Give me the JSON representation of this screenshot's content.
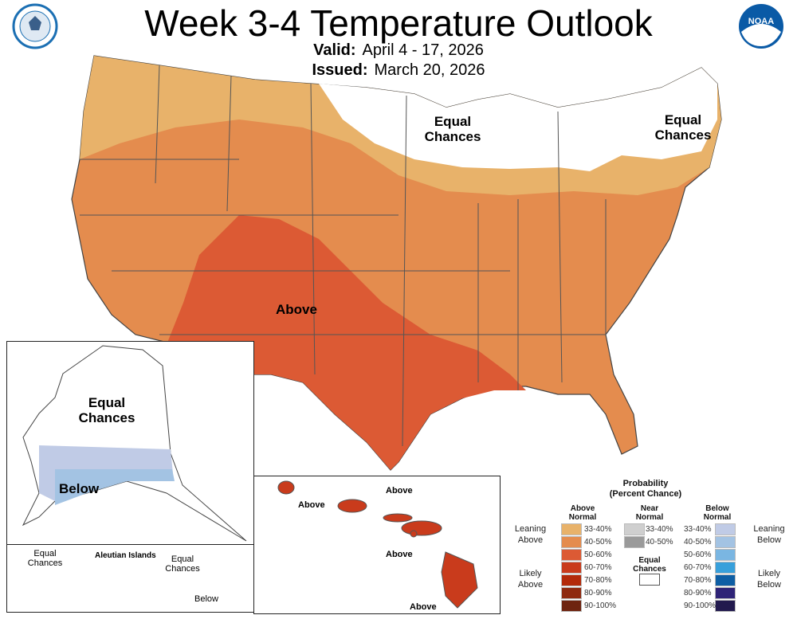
{
  "header": {
    "title": "Week 3-4 Temperature Outlook",
    "valid_label": "Valid:",
    "valid_value": "April 4 - 17, 2026",
    "issued_label": "Issued:",
    "issued_value": "March 20, 2026"
  },
  "logos": {
    "left": "U.S. Department of Commerce seal",
    "right": "NOAA"
  },
  "map_labels": {
    "conus_ec_west": "Equal Chances",
    "conus_ec_east": "Equal Chances",
    "conus_above": "Above",
    "ak_ec": "Equal Chances",
    "ak_below": "Below",
    "aleutian_title": "Aleutian Islands",
    "aleutian_ec1": "Equal Chances",
    "aleutian_ec2": "Equal Chances",
    "aleutian_below": "Below",
    "hi_above1": "Above",
    "hi_above2": "Above",
    "hi_above3": "Above",
    "hi_above4": "Above"
  },
  "legend": {
    "title": "Probability",
    "subtitle": "(Percent Chance)",
    "above_header": "Above Normal",
    "near_header": "Near Normal",
    "below_header": "Below Normal",
    "leaning_above": "Leaning Above",
    "likely_above": "Likely Above",
    "leaning_below": "Leaning Below",
    "likely_below": "Likely Below",
    "equal_chances": "Equal Chances",
    "above": [
      {
        "range": "33-40%",
        "color": "#e8b26a"
      },
      {
        "range": "40-50%",
        "color": "#e48c4e"
      },
      {
        "range": "50-60%",
        "color": "#dc5a34"
      },
      {
        "range": "60-70%",
        "color": "#c93b1c"
      },
      {
        "range": "70-80%",
        "color": "#b32a0a"
      },
      {
        "range": "80-90%",
        "color": "#8f2a10"
      },
      {
        "range": "90-100%",
        "color": "#6e2410"
      }
    ],
    "near": [
      {
        "range": "33-40%",
        "color": "#cfcfcf"
      },
      {
        "range": "40-50%",
        "color": "#9a9a9a"
      }
    ],
    "below": [
      {
        "range": "33-40%",
        "color": "#c0cbe6"
      },
      {
        "range": "40-50%",
        "color": "#a3c3e3"
      },
      {
        "range": "50-60%",
        "color": "#7ab6e2"
      },
      {
        "range": "60-70%",
        "color": "#38a0db"
      },
      {
        "range": "70-80%",
        "color": "#0e5ea4"
      },
      {
        "range": "80-90%",
        "color": "#2e2377"
      },
      {
        "range": "90-100%",
        "color": "#221a4e"
      }
    ]
  }
}
